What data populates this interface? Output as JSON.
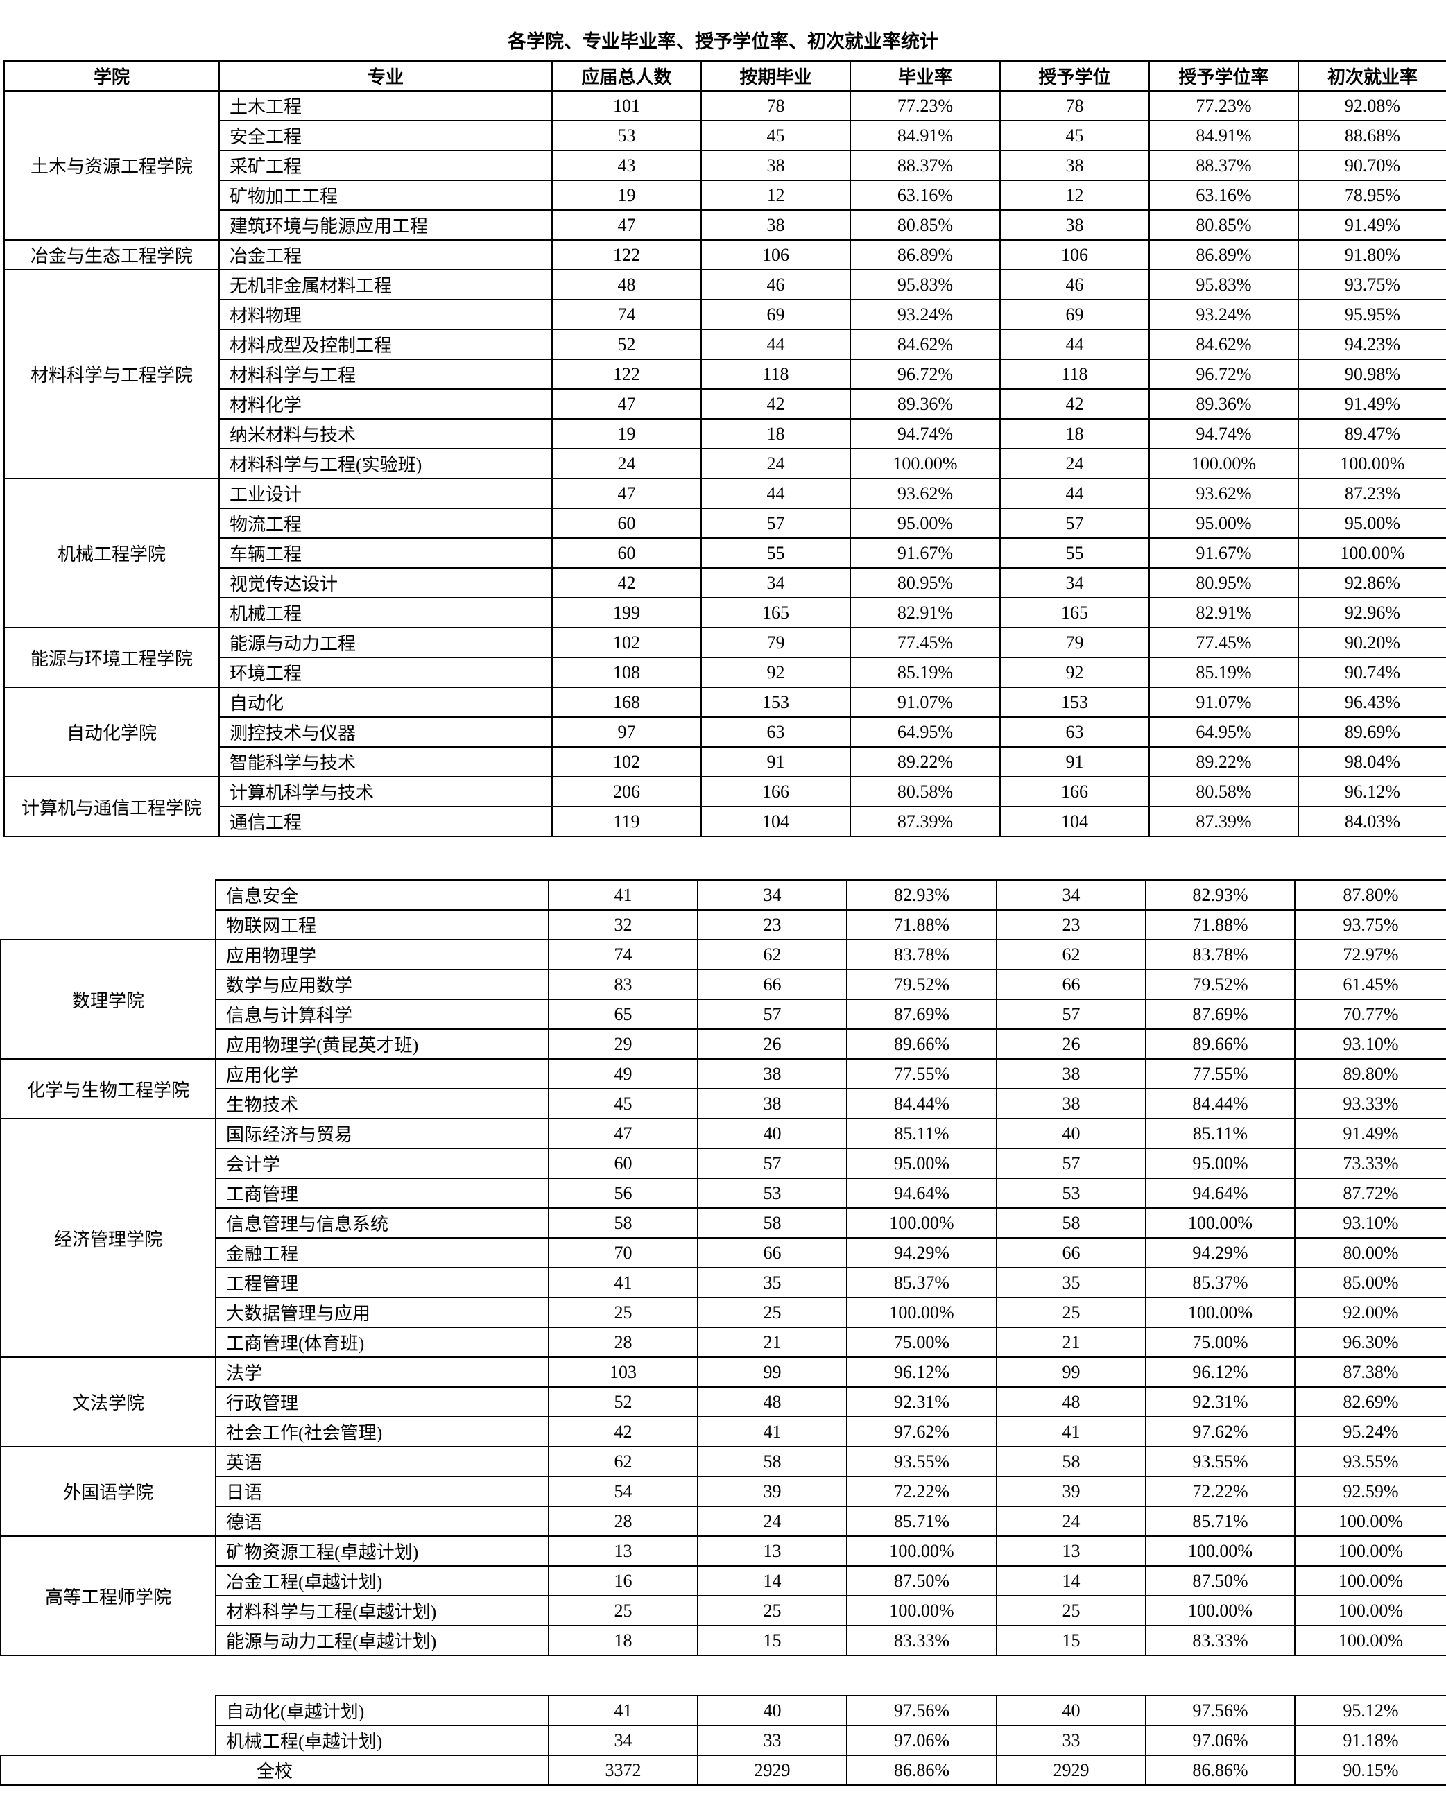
{
  "title": "各学院、专业毕业率、授予学位率、初次就业率统计",
  "headers": [
    "学院",
    "专业",
    "应届总人数",
    "按期毕业",
    "毕业率",
    "授予学位",
    "授予学位率",
    "初次就业率"
  ],
  "segments": [
    [
      {
        "college": "土木与资源工程学院",
        "rows": [
          [
            "土木工程",
            "101",
            "78",
            "77.23%",
            "78",
            "77.23%",
            "92.08%"
          ],
          [
            "安全工程",
            "53",
            "45",
            "84.91%",
            "45",
            "84.91%",
            "88.68%"
          ],
          [
            "采矿工程",
            "43",
            "38",
            "88.37%",
            "38",
            "88.37%",
            "90.70%"
          ],
          [
            "矿物加工工程",
            "19",
            "12",
            "63.16%",
            "12",
            "63.16%",
            "78.95%"
          ],
          [
            "建筑环境与能源应用工程",
            "47",
            "38",
            "80.85%",
            "38",
            "80.85%",
            "91.49%"
          ]
        ]
      },
      {
        "college": "冶金与生态工程学院",
        "rows": [
          [
            "冶金工程",
            "122",
            "106",
            "86.89%",
            "106",
            "86.89%",
            "91.80%"
          ]
        ]
      },
      {
        "college": "材料科学与工程学院",
        "rows": [
          [
            "无机非金属材料工程",
            "48",
            "46",
            "95.83%",
            "46",
            "95.83%",
            "93.75%"
          ],
          [
            "材料物理",
            "74",
            "69",
            "93.24%",
            "69",
            "93.24%",
            "95.95%"
          ],
          [
            "材料成型及控制工程",
            "52",
            "44",
            "84.62%",
            "44",
            "84.62%",
            "94.23%"
          ],
          [
            "材料科学与工程",
            "122",
            "118",
            "96.72%",
            "118",
            "96.72%",
            "90.98%"
          ],
          [
            "材料化学",
            "47",
            "42",
            "89.36%",
            "42",
            "89.36%",
            "91.49%"
          ],
          [
            "纳米材料与技术",
            "19",
            "18",
            "94.74%",
            "18",
            "94.74%",
            "89.47%"
          ],
          [
            "材料科学与工程(实验班)",
            "24",
            "24",
            "100.00%",
            "24",
            "100.00%",
            "100.00%"
          ]
        ]
      },
      {
        "college": "机械工程学院",
        "rows": [
          [
            "工业设计",
            "47",
            "44",
            "93.62%",
            "44",
            "93.62%",
            "87.23%"
          ],
          [
            "物流工程",
            "60",
            "57",
            "95.00%",
            "57",
            "95.00%",
            "95.00%"
          ],
          [
            "车辆工程",
            "60",
            "55",
            "91.67%",
            "55",
            "91.67%",
            "100.00%"
          ],
          [
            "视觉传达设计",
            "42",
            "34",
            "80.95%",
            "34",
            "80.95%",
            "92.86%"
          ],
          [
            "机械工程",
            "199",
            "165",
            "82.91%",
            "165",
            "82.91%",
            "92.96%"
          ]
        ]
      },
      {
        "college": "能源与环境工程学院",
        "rows": [
          [
            "能源与动力工程",
            "102",
            "79",
            "77.45%",
            "79",
            "77.45%",
            "90.20%"
          ],
          [
            "环境工程",
            "108",
            "92",
            "85.19%",
            "92",
            "85.19%",
            "90.74%"
          ]
        ]
      },
      {
        "college": "自动化学院",
        "rows": [
          [
            "自动化",
            "168",
            "153",
            "91.07%",
            "153",
            "91.07%",
            "96.43%"
          ],
          [
            "测控技术与仪器",
            "97",
            "63",
            "64.95%",
            "63",
            "64.95%",
            "89.69%"
          ],
          [
            "智能科学与技术",
            "102",
            "91",
            "89.22%",
            "91",
            "89.22%",
            "98.04%"
          ]
        ]
      },
      {
        "college": "计算机与通信工程学院",
        "rows": [
          [
            "计算机科学与技术",
            "206",
            "166",
            "80.58%",
            "166",
            "80.58%",
            "96.12%"
          ],
          [
            "通信工程",
            "119",
            "104",
            "87.39%",
            "104",
            "87.39%",
            "84.03%"
          ]
        ]
      }
    ],
    [
      {
        "college": "",
        "rows": [
          [
            "信息安全",
            "41",
            "34",
            "82.93%",
            "34",
            "82.93%",
            "87.80%"
          ],
          [
            "物联网工程",
            "32",
            "23",
            "71.88%",
            "23",
            "71.88%",
            "93.75%"
          ]
        ]
      },
      {
        "college": "数理学院",
        "rows": [
          [
            "应用物理学",
            "74",
            "62",
            "83.78%",
            "62",
            "83.78%",
            "72.97%"
          ],
          [
            "数学与应用数学",
            "83",
            "66",
            "79.52%",
            "66",
            "79.52%",
            "61.45%"
          ],
          [
            "信息与计算科学",
            "65",
            "57",
            "87.69%",
            "57",
            "87.69%",
            "70.77%"
          ],
          [
            "应用物理学(黄昆英才班)",
            "29",
            "26",
            "89.66%",
            "26",
            "89.66%",
            "93.10%"
          ]
        ]
      },
      {
        "college": "化学与生物工程学院",
        "rows": [
          [
            "应用化学",
            "49",
            "38",
            "77.55%",
            "38",
            "77.55%",
            "89.80%"
          ],
          [
            "生物技术",
            "45",
            "38",
            "84.44%",
            "38",
            "84.44%",
            "93.33%"
          ]
        ]
      },
      {
        "college": "经济管理学院",
        "rows": [
          [
            "国际经济与贸易",
            "47",
            "40",
            "85.11%",
            "40",
            "85.11%",
            "91.49%"
          ],
          [
            "会计学",
            "60",
            "57",
            "95.00%",
            "57",
            "95.00%",
            "73.33%"
          ],
          [
            "工商管理",
            "56",
            "53",
            "94.64%",
            "53",
            "94.64%",
            "87.72%"
          ],
          [
            "信息管理与信息系统",
            "58",
            "58",
            "100.00%",
            "58",
            "100.00%",
            "93.10%"
          ],
          [
            "金融工程",
            "70",
            "66",
            "94.29%",
            "66",
            "94.29%",
            "80.00%"
          ],
          [
            "工程管理",
            "41",
            "35",
            "85.37%",
            "35",
            "85.37%",
            "85.00%"
          ],
          [
            "大数据管理与应用",
            "25",
            "25",
            "100.00%",
            "25",
            "100.00%",
            "92.00%"
          ],
          [
            "工商管理(体育班)",
            "28",
            "21",
            "75.00%",
            "21",
            "75.00%",
            "96.30%"
          ]
        ]
      },
      {
        "college": "文法学院",
        "rows": [
          [
            "法学",
            "103",
            "99",
            "96.12%",
            "99",
            "96.12%",
            "87.38%"
          ],
          [
            "行政管理",
            "52",
            "48",
            "92.31%",
            "48",
            "92.31%",
            "82.69%"
          ],
          [
            "社会工作(社会管理)",
            "42",
            "41",
            "97.62%",
            "41",
            "97.62%",
            "95.24%"
          ]
        ]
      },
      {
        "college": "外国语学院",
        "rows": [
          [
            "英语",
            "62",
            "58",
            "93.55%",
            "58",
            "93.55%",
            "93.55%"
          ],
          [
            "日语",
            "54",
            "39",
            "72.22%",
            "39",
            "72.22%",
            "92.59%"
          ],
          [
            "德语",
            "28",
            "24",
            "85.71%",
            "24",
            "85.71%",
            "100.00%"
          ]
        ]
      },
      {
        "college": "高等工程师学院",
        "rows": [
          [
            "矿物资源工程(卓越计划)",
            "13",
            "13",
            "100.00%",
            "13",
            "100.00%",
            "100.00%"
          ],
          [
            "冶金工程(卓越计划)",
            "16",
            "14",
            "87.50%",
            "14",
            "87.50%",
            "100.00%"
          ],
          [
            "材料科学与工程(卓越计划)",
            "25",
            "25",
            "100.00%",
            "25",
            "100.00%",
            "100.00%"
          ],
          [
            "能源与动力工程(卓越计划)",
            "18",
            "15",
            "83.33%",
            "15",
            "83.33%",
            "100.00%"
          ]
        ]
      }
    ],
    [
      {
        "college": "",
        "rows": [
          [
            "自动化(卓越计划)",
            "41",
            "40",
            "97.56%",
            "40",
            "97.56%",
            "95.12%"
          ],
          [
            "机械工程(卓越计划)",
            "34",
            "33",
            "97.06%",
            "33",
            "97.06%",
            "91.18%"
          ]
        ]
      }
    ]
  ],
  "total": {
    "label": "全校",
    "values": [
      "3372",
      "2929",
      "86.86%",
      "2929",
      "86.86%",
      "90.15%"
    ]
  }
}
